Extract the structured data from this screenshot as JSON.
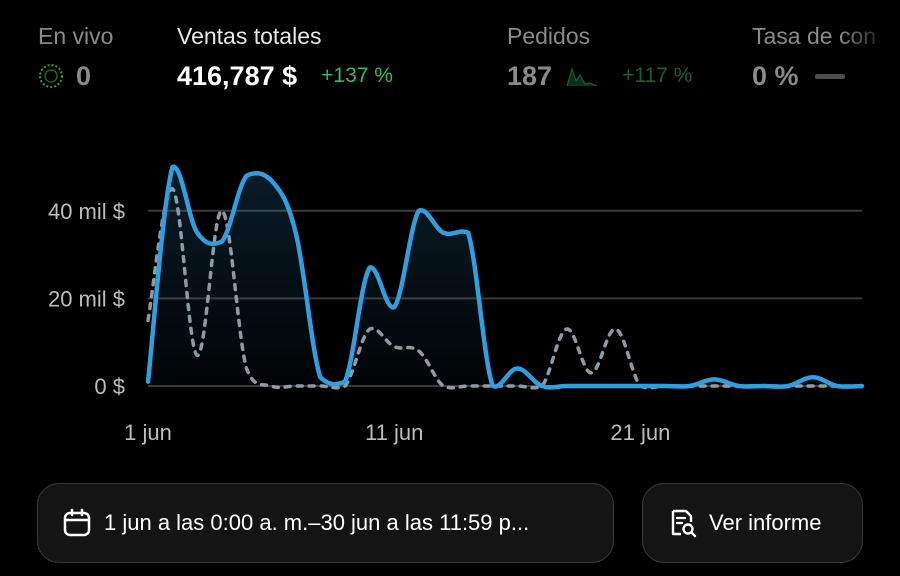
{
  "metrics": {
    "live": {
      "label": "En vivo",
      "value": "0"
    },
    "sales": {
      "label": "Ventas totales",
      "value": "416,787 $",
      "change": "+137 %"
    },
    "orders": {
      "label": "Pedidos",
      "value": "187",
      "change": "+117 %"
    },
    "conversion": {
      "label": "Tasa de con",
      "value": "0 %"
    }
  },
  "colors": {
    "accent_line": "#2f9fe0",
    "comparison_line": "#8e9ba4",
    "positive": "#36b865",
    "live_ring": "#2f9d57"
  },
  "chart_data": {
    "type": "line",
    "x_ticks": [
      "1 jun",
      "11 jun",
      "21 jun"
    ],
    "y_ticks": [
      "0 $",
      "20 mil $",
      "40 mil $"
    ],
    "ylim": [
      0,
      50000
    ],
    "x": [
      1,
      2,
      3,
      4,
      5,
      6,
      7,
      8,
      9,
      10,
      11,
      12,
      13,
      14,
      15,
      16,
      17,
      18,
      19,
      20,
      21,
      22,
      23,
      24,
      25,
      26,
      27,
      28,
      29,
      30
    ],
    "series": [
      {
        "style": "solid",
        "values": [
          1000,
          50000,
          35000,
          33000,
          48000,
          47000,
          35000,
          2000,
          1000,
          27000,
          18000,
          40000,
          35000,
          35000,
          0,
          4000,
          0,
          0,
          0,
          0,
          0,
          0,
          0,
          1500,
          0,
          0,
          0,
          2000,
          0,
          0
        ]
      },
      {
        "style": "dashed",
        "values": [
          15000,
          45000,
          7000,
          40000,
          4000,
          0,
          0,
          0,
          0,
          13000,
          9000,
          8000,
          0,
          0,
          0,
          0,
          0,
          13000,
          3000,
          13000,
          0,
          0,
          0,
          0,
          0,
          0,
          0,
          0,
          0,
          0
        ]
      }
    ],
    "legend": false,
    "grid": true
  },
  "date_range": {
    "label": "1 jun a las 0:00 a. m.–30 jun a las 11:59 p..."
  },
  "report": {
    "label": "Ver informe"
  }
}
